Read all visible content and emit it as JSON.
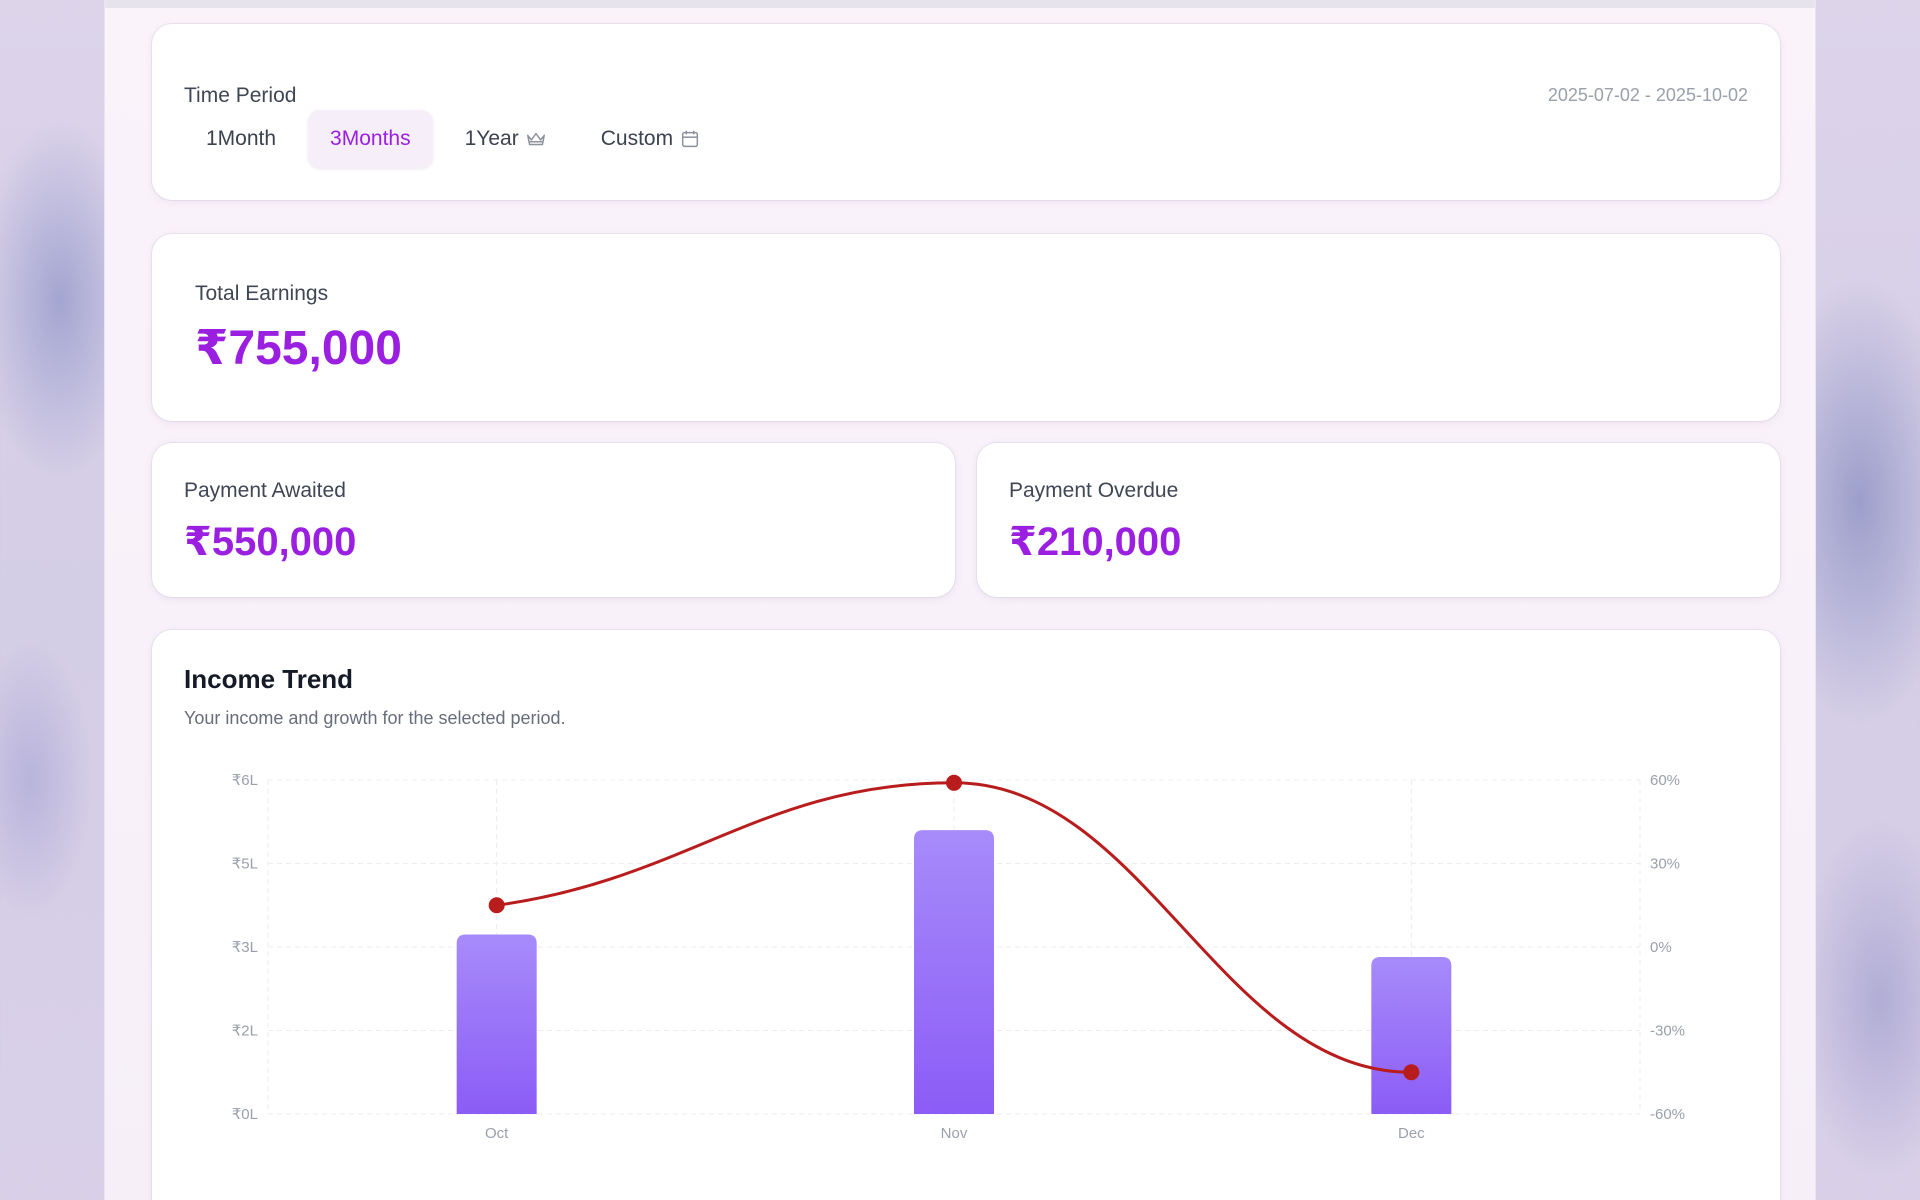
{
  "time_period": {
    "title": "Time Period",
    "range": "2025-07-02 - 2025-10-02",
    "tabs": [
      {
        "label": "1Month",
        "icon": null,
        "active": false
      },
      {
        "label": "3Months",
        "icon": null,
        "active": true
      },
      {
        "label": "1Year",
        "icon": "crown-icon",
        "active": false
      },
      {
        "label": "Custom",
        "icon": "calendar-icon",
        "active": false
      }
    ]
  },
  "total_earnings": {
    "label": "Total Earnings",
    "value": "₹755,000"
  },
  "payment_awaited": {
    "label": "Payment Awaited",
    "value": "₹550,000"
  },
  "payment_overdue": {
    "label": "Payment Overdue",
    "value": "₹210,000"
  },
  "income_trend": {
    "title": "Income Trend",
    "subtitle": "Your income and growth for the selected period."
  },
  "colors": {
    "accent": "#9b1fe0",
    "bar_top": "#a78bfa",
    "bar_bottom": "#8b5cf6",
    "line": "#b91c1c"
  },
  "chart_data": {
    "type": "bar",
    "categories": [
      "Oct",
      "Nov",
      "Dec"
    ],
    "series": [
      {
        "type": "bar",
        "values": [
          2.15,
          3.4,
          1.88
        ],
        "axis": "left"
      },
      {
        "type": "line",
        "values": [
          15,
          59,
          -45
        ],
        "axis": "right"
      }
    ],
    "y_left": {
      "ticks": [
        "₹0L",
        "₹2L",
        "₹3L",
        "₹5L",
        "₹6L"
      ],
      "ylim": [
        0,
        4
      ]
    },
    "y_right": {
      "ticks": [
        "-60%",
        "-30%",
        "0%",
        "30%",
        "60%"
      ],
      "ylim": [
        -60,
        60
      ]
    },
    "grid": true
  }
}
